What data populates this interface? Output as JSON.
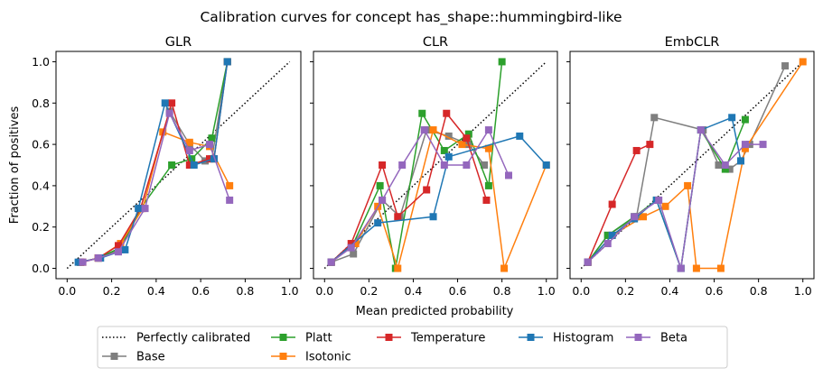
{
  "chart_data": {
    "type": "line",
    "title": "Calibration curves for concept has_shape::hummingbird-like",
    "xlabel": "Mean predicted probability",
    "ylabel": "Fraction of positives",
    "xlim": [
      -0.05,
      1.05
    ],
    "ylim": [
      -0.05,
      1.05
    ],
    "xticks": [
      "0.0",
      "0.2",
      "0.4",
      "0.6",
      "0.8",
      "1.0"
    ],
    "yticks": [
      "0.0",
      "0.2",
      "0.4",
      "0.6",
      "0.8",
      "1.0"
    ],
    "grid": false,
    "legend_position": "bottom-center",
    "series_styles": [
      {
        "name": "Perfectly calibrated",
        "color": "#000000",
        "style": "dotted"
      },
      {
        "name": "Base",
        "color": "#7f7f7f",
        "style": "solid-square"
      },
      {
        "name": "Platt",
        "color": "#2ca02c",
        "style": "solid-square"
      },
      {
        "name": "Isotonic",
        "color": "#ff7f0e",
        "style": "solid-square"
      },
      {
        "name": "Temperature",
        "color": "#d62728",
        "style": "solid-square"
      },
      {
        "name": "Histogram",
        "color": "#1f77b4",
        "style": "solid-square"
      },
      {
        "name": "Beta",
        "color": "#9467bd",
        "style": "solid-square"
      }
    ],
    "panels": [
      {
        "title": "GLR",
        "series": [
          {
            "name": "Base",
            "x": [
              0.06,
              0.14,
              0.24,
              0.33,
              0.46,
              0.55,
              0.62,
              0.65,
              0.72
            ],
            "y": [
              0.03,
              0.05,
              0.09,
              0.29,
              0.76,
              0.6,
              0.52,
              0.53,
              1.0
            ]
          },
          {
            "name": "Platt",
            "x": [
              0.06,
              0.14,
              0.24,
              0.33,
              0.47,
              0.56,
              0.65,
              0.72
            ],
            "y": [
              0.03,
              0.05,
              0.1,
              0.29,
              0.5,
              0.53,
              0.63,
              1.0
            ]
          },
          {
            "name": "Isotonic",
            "x": [
              0.07,
              0.14,
              0.24,
              0.34,
              0.43,
              0.55,
              0.64,
              0.73
            ],
            "y": [
              0.03,
              0.05,
              0.12,
              0.29,
              0.66,
              0.61,
              0.59,
              0.4
            ]
          },
          {
            "name": "Temperature",
            "x": [
              0.06,
              0.14,
              0.23,
              0.33,
              0.47,
              0.55,
              0.64,
              0.66,
              0.72
            ],
            "y": [
              0.03,
              0.05,
              0.11,
              0.29,
              0.8,
              0.5,
              0.53,
              0.53,
              1.0
            ]
          },
          {
            "name": "Histogram",
            "x": [
              0.05,
              0.15,
              0.26,
              0.32,
              0.44,
              0.57,
              0.66,
              0.72
            ],
            "y": [
              0.03,
              0.05,
              0.09,
              0.29,
              0.8,
              0.5,
              0.53,
              1.0
            ]
          },
          {
            "name": "Beta",
            "x": [
              0.07,
              0.14,
              0.23,
              0.35,
              0.46,
              0.55,
              0.64,
              0.73
            ],
            "y": [
              0.03,
              0.05,
              0.08,
              0.29,
              0.75,
              0.57,
              0.6,
              0.33
            ]
          }
        ]
      },
      {
        "title": "CLR",
        "series": [
          {
            "name": "Base",
            "x": [
              0.03,
              0.13,
              0.26,
              0.34,
              0.46,
              0.56,
              0.65,
              0.72
            ],
            "y": [
              0.03,
              0.07,
              0.33,
              0.25,
              0.67,
              0.64,
              0.6,
              0.5
            ]
          },
          {
            "name": "Platt",
            "x": [
              0.03,
              0.13,
              0.25,
              0.32,
              0.44,
              0.54,
              0.65,
              0.74,
              0.8
            ],
            "y": [
              0.03,
              0.12,
              0.4,
              0.0,
              0.75,
              0.57,
              0.65,
              0.4,
              1.0
            ]
          },
          {
            "name": "Isotonic",
            "x": [
              0.03,
              0.14,
              0.24,
              0.33,
              0.49,
              0.62,
              0.74,
              0.81,
              1.0
            ],
            "y": [
              0.03,
              0.12,
              0.3,
              0.0,
              0.67,
              0.6,
              0.58,
              0.0,
              0.5
            ]
          },
          {
            "name": "Temperature",
            "x": [
              0.03,
              0.12,
              0.26,
              0.33,
              0.46,
              0.55,
              0.64,
              0.73
            ],
            "y": [
              0.03,
              0.12,
              0.5,
              0.25,
              0.38,
              0.75,
              0.63,
              0.33
            ]
          },
          {
            "name": "Histogram",
            "x": [
              0.03,
              0.24,
              0.49,
              0.56,
              0.88,
              1.0
            ],
            "y": [
              0.03,
              0.22,
              0.25,
              0.54,
              0.64,
              0.5
            ]
          },
          {
            "name": "Beta",
            "x": [
              0.03,
              0.12,
              0.26,
              0.35,
              0.45,
              0.54,
              0.64,
              0.74,
              0.83
            ],
            "y": [
              0.03,
              0.1,
              0.33,
              0.5,
              0.67,
              0.5,
              0.5,
              0.67,
              0.45
            ]
          }
        ]
      },
      {
        "title": "EmbCLR",
        "series": [
          {
            "name": "Base",
            "x": [
              0.03,
              0.12,
              0.25,
              0.33,
              0.55,
              0.62,
              0.67,
              0.72,
              0.76,
              0.92
            ],
            "y": [
              0.03,
              0.16,
              0.25,
              0.73,
              0.67,
              0.5,
              0.48,
              0.52,
              0.6,
              0.98
            ]
          },
          {
            "name": "Platt",
            "x": [
              0.03,
              0.12,
              0.24,
              0.34,
              0.45,
              0.54,
              0.65,
              0.74
            ],
            "y": [
              0.03,
              0.16,
              0.25,
              0.33,
              0.0,
              0.67,
              0.48,
              0.72
            ]
          },
          {
            "name": "Isotonic",
            "x": [
              0.03,
              0.14,
              0.28,
              0.38,
              0.48,
              0.52,
              0.63,
              0.74,
              1.0
            ],
            "y": [
              0.03,
              0.16,
              0.25,
              0.3,
              0.4,
              0.0,
              0.0,
              0.58,
              1.0
            ]
          },
          {
            "name": "Temperature",
            "x": [
              0.03,
              0.14,
              0.25,
              0.31
            ],
            "y": [
              0.03,
              0.31,
              0.57,
              0.6
            ]
          },
          {
            "name": "Histogram",
            "x": [
              0.03,
              0.14,
              0.24,
              0.34,
              0.45,
              0.54,
              0.68,
              0.72
            ],
            "y": [
              0.03,
              0.16,
              0.24,
              0.33,
              0.0,
              0.67,
              0.73,
              0.52
            ]
          },
          {
            "name": "Beta",
            "x": [
              0.03,
              0.12,
              0.24,
              0.35,
              0.45,
              0.54,
              0.65,
              0.74,
              0.82
            ],
            "y": [
              0.03,
              0.12,
              0.25,
              0.33,
              0.0,
              0.67,
              0.5,
              0.6,
              0.6
            ]
          }
        ]
      }
    ]
  }
}
